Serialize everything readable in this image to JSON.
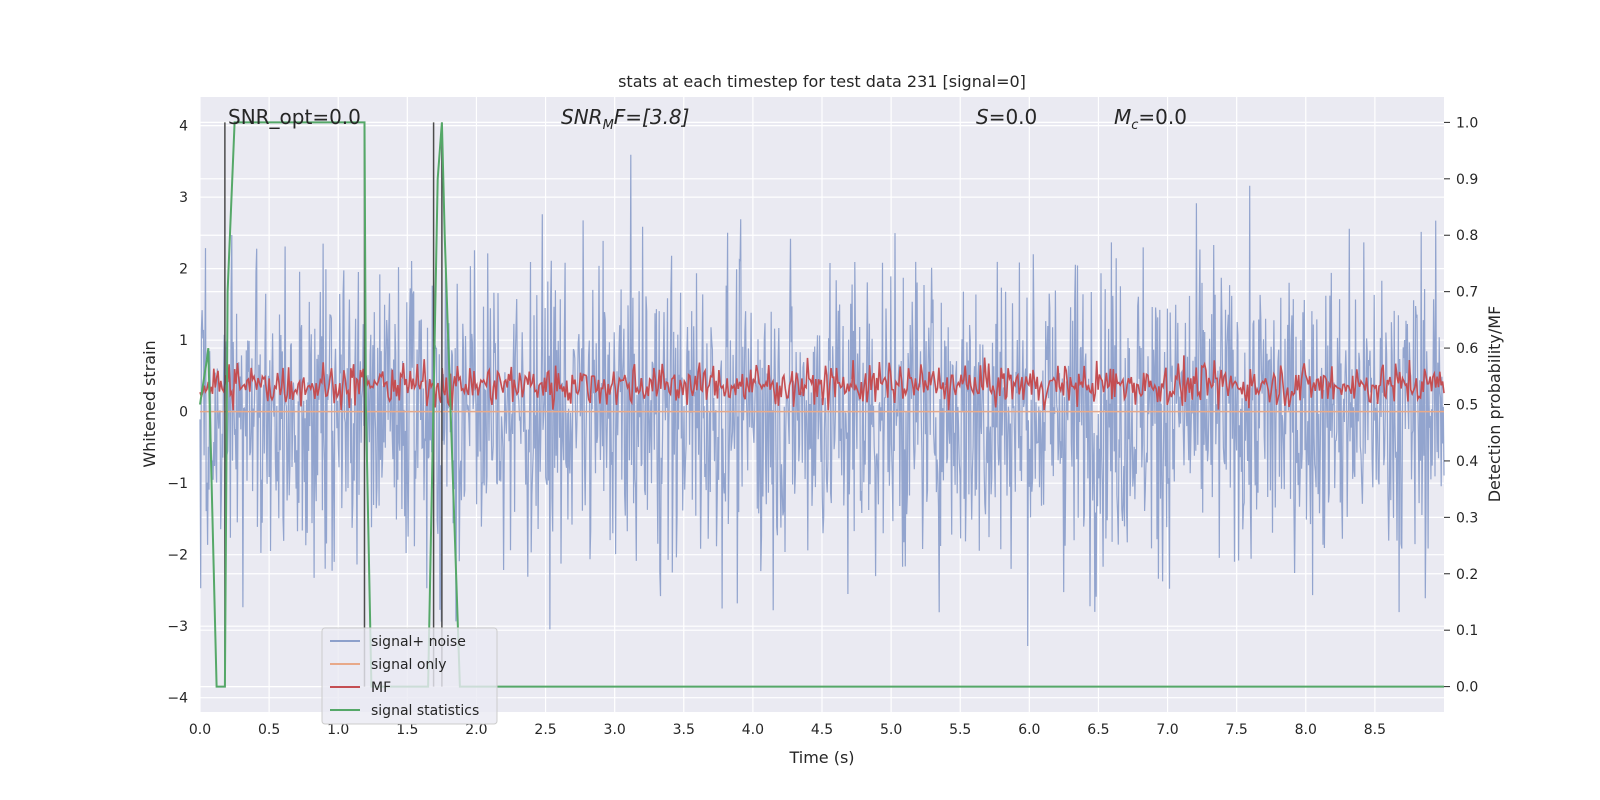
{
  "chart_data": {
    "type": "line",
    "title": "stats at each timestep for test data 231 [signal=0]",
    "xlabel": "Time (s)",
    "ylabel": "Whitened strain",
    "y2label": "Detection probability/MF",
    "xlim": [
      0,
      9.0
    ],
    "ylim": [
      -4.2,
      4.4
    ],
    "y2lim": [
      -0.045,
      1.045
    ],
    "xticks": [
      "0.0",
      "0.5",
      "1.0",
      "1.5",
      "2.0",
      "2.5",
      "3.0",
      "3.5",
      "4.0",
      "4.5",
      "5.0",
      "5.5",
      "6.0",
      "6.5",
      "7.0",
      "7.5",
      "8.0",
      "8.5"
    ],
    "yticks": [
      "4",
      "3",
      "2",
      "1",
      "0",
      "−1",
      "−2",
      "−3",
      "−4"
    ],
    "y2ticks": [
      "1.0",
      "0.9",
      "0.8",
      "0.7",
      "0.6",
      "0.5",
      "0.4",
      "0.3",
      "0.2",
      "0.1",
      "0.0"
    ],
    "grid": true,
    "legend_position": "lower-left",
    "annotations": {
      "snr_opt": "SNR_opt=0.0",
      "snr_mf_main": "SNR",
      "snr_mf_sub": "M",
      "snr_mf_rest": "F=[3.8]",
      "s_main": "S",
      "s_rest": "=0.0",
      "mc_main": "M",
      "mc_sub": "c",
      "mc_rest": "=0.0"
    },
    "series": [
      {
        "name": "signal+ noise",
        "axis": "left",
        "color": "#8da0cb",
        "description_values": {
          "typical_range": [
            -2.2,
            2.2
          ],
          "max": 4.0,
          "min": -3.7
        }
      },
      {
        "name": "signal only",
        "axis": "left",
        "color": "#e8a989",
        "values_constant": 0.0
      },
      {
        "name": "MF",
        "axis": "right",
        "color": "#c44e52",
        "typical_range": [
          0.49,
          0.59
        ]
      },
      {
        "name": "signal statistics",
        "axis": "right",
        "color": "#55a868",
        "x": [
          0.0,
          0.05,
          0.06,
          0.12,
          0.18,
          0.2,
          0.25,
          1.19,
          1.2,
          1.24,
          1.65,
          1.72,
          1.75,
          1.77,
          1.88,
          9.0
        ],
        "y": [
          0.5,
          0.58,
          0.6,
          0.0,
          0.0,
          0.7,
          1.0,
          1.0,
          0.5,
          0.0,
          0.0,
          0.9,
          1.0,
          0.8,
          0.0,
          0.0
        ]
      }
    ],
    "markers_vertical_x": [
      0.18,
      1.19,
      1.69,
      1.75
    ],
    "markers_color": "#4c4c4c"
  },
  "legend": {
    "items": [
      {
        "label": "signal+ noise",
        "color": "#8da0cb"
      },
      {
        "label": "signal only",
        "color": "#e8a989"
      },
      {
        "label": "MF",
        "color": "#c44e52"
      },
      {
        "label": "signal statistics",
        "color": "#55a868"
      }
    ]
  },
  "colors": {
    "plot_bg": "#eaeaf2",
    "grid": "#ffffff",
    "text": "#262626"
  }
}
